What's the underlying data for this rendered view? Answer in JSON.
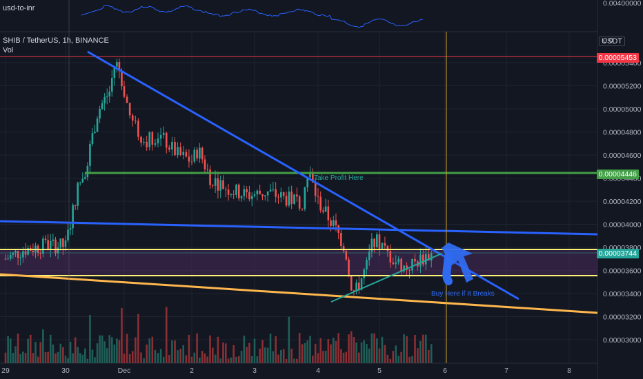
{
  "header": {
    "indicator_name": "usd-to-inr",
    "symbol_line": "SHIB / TetherUS, 1h, BINANCE",
    "vol_label": "Vol",
    "currency_button": "USDT",
    "top_axis_partial": "0.0"
  },
  "colors": {
    "background": "#131722",
    "up": "#26a69a",
    "down": "#ef5350",
    "vol_up": "#1f5f57",
    "vol_down": "#8b2f34",
    "trend_blue": "#2962ff",
    "support_yellow": "#fff176",
    "support_orange": "#ffb74d",
    "take_profit_green": "#43a047",
    "resistance_red": "#f23645",
    "crosshair": "#c9a227",
    "zone_purple": "#4a2a5a",
    "arrow_blue": "#2f6bf0"
  },
  "chart_data": {
    "type": "candlestick",
    "symbol": "SHIB / TetherUS",
    "interval": "1h",
    "exchange": "BINANCE",
    "x_ticks": [
      "29",
      "30",
      "Dec",
      "2",
      "3",
      "4",
      "5",
      "6",
      "7",
      "8"
    ],
    "y_ticks": [
      "0.00005400",
      "0.00005200",
      "0.00005000",
      "0.00004800",
      "0.00004600",
      "0.00004400",
      "0.00004200",
      "0.00004000",
      "0.00003800",
      "0.00003600",
      "0.00003400",
      "0.00003200",
      "0.00003000"
    ],
    "indicator_top_tick": "0.00400000",
    "ylim": [
      2.89e-05,
      5.51e-05
    ],
    "xlim": [
      29.0,
      8.45
    ],
    "price_levels": {
      "resistance_red": "0.00005453",
      "take_profit_green": "0.00004446",
      "current_price": "0.00003744"
    },
    "price_path": [
      [
        29.0,
        3.7e-05
      ],
      [
        29.3,
        3.78e-05
      ],
      [
        29.7,
        3.82e-05
      ],
      [
        30.0,
        3.81e-05
      ],
      [
        30.2,
        4.3e-05
      ],
      [
        30.35,
        4.5e-05
      ],
      [
        30.55,
        4.98e-05
      ],
      [
        30.75,
        5.15e-05
      ],
      [
        30.85,
        5.42e-05
      ],
      [
        30.95,
        5.28e-05
      ],
      [
        31.1,
        4.9e-05
      ],
      [
        31.3,
        4.72e-05
      ],
      [
        31.5,
        4.78e-05
      ],
      [
        31.8,
        4.6e-05
      ],
      [
        32.0,
        4.55e-05
      ],
      [
        32.1,
        4.65e-05
      ],
      [
        32.3,
        4.4e-05
      ],
      [
        32.6,
        4.3e-05
      ],
      [
        32.9,
        4.25e-05
      ],
      [
        33.2,
        4.28e-05
      ],
      [
        33.5,
        4.22e-05
      ],
      [
        33.75,
        4.2e-05
      ],
      [
        33.85,
        4.45e-05
      ],
      [
        34.0,
        4.2e-05
      ],
      [
        34.3,
        3.95e-05
      ],
      [
        34.45,
        3.78e-05
      ],
      [
        34.5,
        3.55e-05
      ],
      [
        34.6,
        3.4e-05
      ],
      [
        34.8,
        3.65e-05
      ],
      [
        34.9,
        3.88e-05
      ],
      [
        35.2,
        3.7e-05
      ],
      [
        35.4,
        3.62e-05
      ],
      [
        35.7,
        3.72e-05
      ],
      [
        35.8,
        3.74e-05
      ]
    ],
    "volume_scale": [
      0,
      100
    ],
    "annotations": {
      "take_profit": "Take Profit Here",
      "buy": "Buy Here if It Breaks"
    }
  }
}
